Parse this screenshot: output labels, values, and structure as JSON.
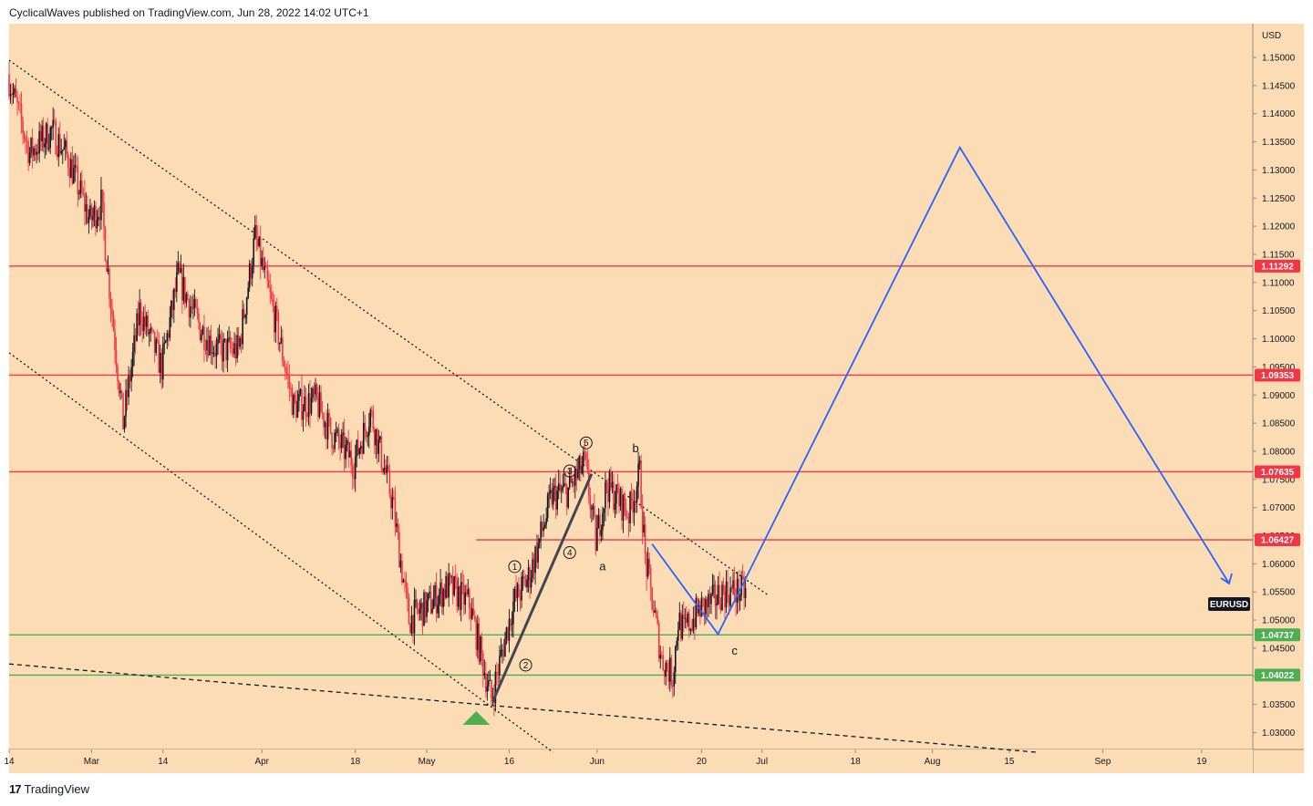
{
  "header": {
    "publisher_line": "CyclicalWaves published on TradingView.com, Jun 28, 2022 14:02 UTC+1"
  },
  "footer": {
    "brand": "TradingView",
    "logo_mark": "17"
  },
  "colors": {
    "background": "#fbdcb4",
    "resistance": "#f23645",
    "support": "#4caf50",
    "projection": "#2962ff",
    "bull_candle": "#131722",
    "bear_candle": "#f23645"
  },
  "chart_data": {
    "type": "candlestick",
    "symbol": "EURUSD",
    "currency_label": "USD",
    "ylim": [
      1.027,
      1.156
    ],
    "y_ticks": [
      "1.15000",
      "1.14500",
      "1.14000",
      "1.13500",
      "1.13000",
      "1.12500",
      "1.12000",
      "1.11500",
      "1.11000",
      "1.10500",
      "1.10000",
      "1.09500",
      "1.09000",
      "1.08500",
      "1.08000",
      "1.07500",
      "1.07000",
      "1.06500",
      "1.06000",
      "1.05500",
      "1.05000",
      "1.04500",
      "1.04000",
      "1.03500",
      "1.03000"
    ],
    "x_ticks": [
      {
        "label": "14",
        "date": "2022-02-14"
      },
      {
        "label": "Mar",
        "date": "2022-03-01"
      },
      {
        "label": "14",
        "date": "2022-03-14"
      },
      {
        "label": "Apr",
        "date": "2022-04-01"
      },
      {
        "label": "18",
        "date": "2022-04-18"
      },
      {
        "label": "May",
        "date": "2022-05-01"
      },
      {
        "label": "16",
        "date": "2022-05-16"
      },
      {
        "label": "Jun",
        "date": "2022-06-01"
      },
      {
        "label": "20",
        "date": "2022-06-20"
      },
      {
        "label": "Jul",
        "date": "2022-07-01"
      },
      {
        "label": "18",
        "date": "2022-07-18"
      },
      {
        "label": "Aug",
        "date": "2022-08-01"
      },
      {
        "label": "15",
        "date": "2022-08-15"
      },
      {
        "label": "Sep",
        "date": "2022-09-01"
      },
      {
        "label": "19",
        "date": "2022-09-19"
      }
    ],
    "price_path": [
      [
        "2022-02-14",
        1.147
      ],
      [
        "2022-02-18",
        1.133
      ],
      [
        "2022-02-22",
        1.137
      ],
      [
        "2022-02-25",
        1.132
      ],
      [
        "2022-03-01",
        1.121
      ],
      [
        "2022-03-03",
        1.124
      ],
      [
        "2022-03-07",
        1.085
      ],
      [
        "2022-03-10",
        1.105
      ],
      [
        "2022-03-14",
        1.095
      ],
      [
        "2022-03-17",
        1.111
      ],
      [
        "2022-03-21",
        1.102
      ],
      [
        "2022-03-24",
        1.098
      ],
      [
        "2022-03-28",
        1.098
      ],
      [
        "2022-03-31",
        1.118
      ],
      [
        "2022-04-04",
        1.102
      ],
      [
        "2022-04-07",
        1.088
      ],
      [
        "2022-04-11",
        1.089
      ],
      [
        "2022-04-14",
        1.083
      ],
      [
        "2022-04-18",
        1.078
      ],
      [
        "2022-04-21",
        1.087
      ],
      [
        "2022-04-25",
        1.071
      ],
      [
        "2022-04-28",
        1.05
      ],
      [
        "2022-05-02",
        1.053
      ],
      [
        "2022-05-05",
        1.056
      ],
      [
        "2022-05-09",
        1.053
      ],
      [
        "2022-05-12",
        1.04
      ],
      [
        "2022-05-13",
        1.036
      ],
      [
        "2022-05-17",
        1.053
      ],
      [
        "2022-05-20",
        1.058
      ],
      [
        "2022-05-24",
        1.072
      ],
      [
        "2022-05-27",
        1.073
      ],
      [
        "2022-05-30",
        1.078
      ],
      [
        "2022-06-01",
        1.064
      ],
      [
        "2022-06-03",
        1.074
      ],
      [
        "2022-06-07",
        1.069
      ],
      [
        "2022-06-09",
        1.076
      ],
      [
        "2022-06-10",
        1.061
      ],
      [
        "2022-06-13",
        1.043
      ],
      [
        "2022-06-15",
        1.04
      ],
      [
        "2022-06-16",
        1.05
      ],
      [
        "2022-06-17",
        1.048
      ],
      [
        "2022-06-20",
        1.052
      ],
      [
        "2022-06-22",
        1.053
      ],
      [
        "2022-06-24",
        1.055
      ],
      [
        "2022-06-28",
        1.055
      ]
    ],
    "horizontal_levels": [
      {
        "price": 1.11292,
        "label": "1.11292",
        "kind": "resistance"
      },
      {
        "price": 1.09353,
        "label": "1.09353",
        "kind": "resistance"
      },
      {
        "price": 1.07635,
        "label": "1.07635",
        "kind": "resistance"
      },
      {
        "price": 1.06427,
        "label": "1.06427",
        "kind": "resistance",
        "start": "2022-05-10"
      },
      {
        "price": 1.04737,
        "label": "1.04737",
        "kind": "support"
      },
      {
        "price": 1.04022,
        "label": "1.04022",
        "kind": "support"
      }
    ],
    "trend_lines": [
      {
        "style": "dotted",
        "from": [
          "2022-02-14",
          1.1495
        ],
        "to": [
          "2022-07-02",
          1.0545
        ]
      },
      {
        "style": "dotted",
        "from": [
          "2022-02-14",
          1.0975
        ],
        "to": [
          "2022-05-24",
          1.0265
        ]
      },
      {
        "style": "dashed",
        "from": [
          "2022-02-14",
          1.0422
        ],
        "to": [
          "2022-08-20",
          1.0265
        ]
      }
    ],
    "impulse_line": {
      "from": [
        "2022-05-13",
        1.0355
      ],
      "to": [
        "2022-05-31",
        1.076
      ]
    },
    "projection_path": [
      [
        "2022-06-11",
        1.0635
      ],
      [
        "2022-06-23",
        1.0475
      ],
      [
        "2022-08-06",
        1.134
      ],
      [
        "2022-09-24",
        1.0565
      ]
    ],
    "wave_labels": [
      {
        "text": "1",
        "date": "2022-05-17",
        "price": 1.0595,
        "circled": true
      },
      {
        "text": "2",
        "date": "2022-05-19",
        "price": 1.042,
        "circled": true
      },
      {
        "text": "3",
        "date": "2022-05-27",
        "price": 1.0765,
        "circled": true
      },
      {
        "text": "4",
        "date": "2022-05-27",
        "price": 1.062,
        "circled": true
      },
      {
        "text": "5",
        "date": "2022-05-30",
        "price": 1.0815,
        "circled": true
      },
      {
        "text": "a",
        "date": "2022-06-02",
        "price": 1.0595,
        "circled": false
      },
      {
        "text": "b",
        "date": "2022-06-08",
        "price": 1.0805,
        "circled": false
      },
      {
        "text": "c",
        "date": "2022-06-26",
        "price": 1.0445,
        "circled": false
      }
    ],
    "marker": {
      "kind": "up-triangle",
      "date": "2022-05-10",
      "price": 1.0325
    }
  }
}
